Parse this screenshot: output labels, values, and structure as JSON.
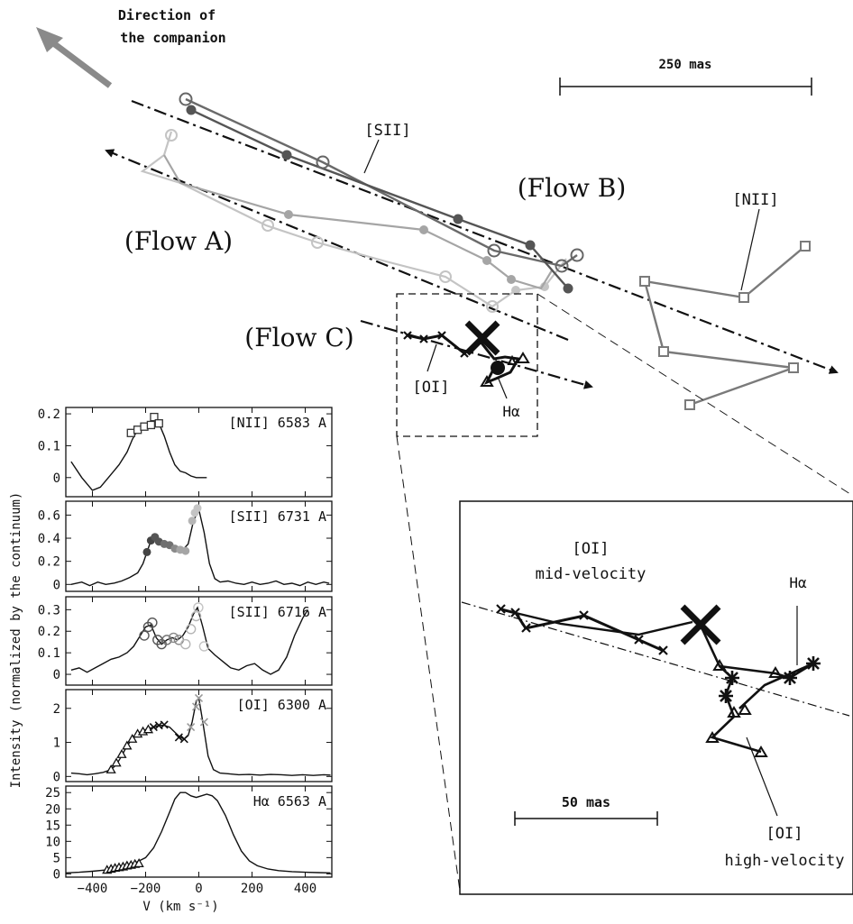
{
  "main_labels": {
    "direction_line1": "Direction of",
    "direction_line2": "the companion",
    "scale_main": "250 mas",
    "flow_a": "(Flow A)",
    "flow_b": "(Flow B)",
    "flow_c": "(Flow C)",
    "sii": "[SII]",
    "nii": "[NII]",
    "oi": "[OI]",
    "halpha": "Hα"
  },
  "inset_labels": {
    "oi_mid_line1": "[OI]",
    "oi_mid_line2": "mid-velocity",
    "halpha": "Hα",
    "scale": "50 mas",
    "oi_high_line1": "[OI]",
    "oi_high_line2": "high-velocity"
  },
  "colors": {
    "nii": "#7a7a7a",
    "sii_dark": "#555555",
    "sii_mid": "#8a8a8a",
    "sii_light": "#c4c4c4",
    "black": "#111111"
  },
  "chart_data": [
    {
      "type": "line",
      "label": "[NII] 6583 A",
      "xlim": [
        -500,
        500
      ],
      "ylim": [
        -0.06,
        0.22
      ],
      "yticks": [
        0,
        0.1,
        0.2
      ],
      "ytick_labels": [
        "0",
        "0.1",
        "0.2"
      ],
      "profile": [
        [
          -480,
          0.05
        ],
        [
          -440,
          0.0
        ],
        [
          -400,
          -0.04
        ],
        [
          -370,
          -0.03
        ],
        [
          -340,
          0.0
        ],
        [
          -300,
          0.04
        ],
        [
          -270,
          0.08
        ],
        [
          -250,
          0.12
        ],
        [
          -230,
          0.15
        ],
        [
          -210,
          0.16
        ],
        [
          -190,
          0.165
        ],
        [
          -170,
          0.19
        ],
        [
          -150,
          0.17
        ],
        [
          -130,
          0.13
        ],
        [
          -110,
          0.08
        ],
        [
          -90,
          0.04
        ],
        [
          -70,
          0.02
        ],
        [
          -50,
          0.015
        ],
        [
          -30,
          0.005
        ],
        [
          -10,
          0.0
        ],
        [
          10,
          0.0
        ],
        [
          30,
          0.0
        ]
      ],
      "markers": {
        "symbol": "square",
        "color": "#333333",
        "points": [
          [
            -255,
            0.14
          ],
          [
            -230,
            0.15
          ],
          [
            -205,
            0.16
          ],
          [
            -180,
            0.165
          ],
          [
            -168,
            0.19
          ],
          [
            -150,
            0.17
          ]
        ]
      }
    },
    {
      "type": "line",
      "label": "[SII] 6731 A",
      "xlim": [
        -500,
        500
      ],
      "ylim": [
        -0.06,
        0.72
      ],
      "yticks": [
        0,
        0.2,
        0.4,
        0.6
      ],
      "ytick_labels": [
        "0",
        "0.2",
        "0.4",
        "0.6"
      ],
      "profile": [
        [
          -480,
          0.0
        ],
        [
          -440,
          0.02
        ],
        [
          -410,
          -0.01
        ],
        [
          -380,
          0.02
        ],
        [
          -350,
          0.0
        ],
        [
          -320,
          0.01
        ],
        [
          -290,
          0.03
        ],
        [
          -260,
          0.06
        ],
        [
          -230,
          0.1
        ],
        [
          -210,
          0.18
        ],
        [
          -195,
          0.28
        ],
        [
          -180,
          0.38
        ],
        [
          -160,
          0.4
        ],
        [
          -140,
          0.36
        ],
        [
          -120,
          0.35
        ],
        [
          -100,
          0.33
        ],
        [
          -80,
          0.31
        ],
        [
          -60,
          0.3
        ],
        [
          -40,
          0.35
        ],
        [
          -20,
          0.55
        ],
        [
          0,
          0.65
        ],
        [
          20,
          0.45
        ],
        [
          40,
          0.18
        ],
        [
          60,
          0.05
        ],
        [
          80,
          0.02
        ],
        [
          110,
          0.03
        ],
        [
          140,
          0.01
        ],
        [
          170,
          0.0
        ],
        [
          200,
          0.02
        ],
        [
          230,
          0.0
        ],
        [
          260,
          0.01
        ],
        [
          290,
          0.03
        ],
        [
          320,
          0.0
        ],
        [
          350,
          0.01
        ],
        [
          380,
          -0.01
        ],
        [
          410,
          0.02
        ],
        [
          440,
          0.0
        ],
        [
          470,
          0.02
        ],
        [
          490,
          0.01
        ]
      ],
      "markers": {
        "symbol": "filled-circle",
        "points": [
          [
            -195,
            0.28,
            "#444444"
          ],
          [
            -180,
            0.38,
            "#444444"
          ],
          [
            -165,
            0.41,
            "#555555"
          ],
          [
            -150,
            0.37,
            "#555555"
          ],
          [
            -130,
            0.35,
            "#707070"
          ],
          [
            -110,
            0.34,
            "#707070"
          ],
          [
            -90,
            0.31,
            "#8a8a8a"
          ],
          [
            -70,
            0.3,
            "#a5a5a5"
          ],
          [
            -50,
            0.29,
            "#a5a5a5"
          ],
          [
            -25,
            0.55,
            "#b5b5b5"
          ],
          [
            -15,
            0.62,
            "#c4c4c4"
          ],
          [
            -5,
            0.66,
            "#c4c4c4"
          ]
        ]
      }
    },
    {
      "type": "line",
      "label": "[SII] 6716 A",
      "xlim": [
        -500,
        500
      ],
      "ylim": [
        -0.05,
        0.36
      ],
      "yticks": [
        0,
        0.1,
        0.2,
        0.3
      ],
      "ytick_labels": [
        "0",
        "0.1",
        "0.2",
        "0.3"
      ],
      "profile": [
        [
          -480,
          0.02
        ],
        [
          -450,
          0.03
        ],
        [
          -420,
          0.01
        ],
        [
          -390,
          0.03
        ],
        [
          -360,
          0.05
        ],
        [
          -330,
          0.07
        ],
        [
          -300,
          0.08
        ],
        [
          -270,
          0.1
        ],
        [
          -245,
          0.13
        ],
        [
          -220,
          0.18
        ],
        [
          -200,
          0.22
        ],
        [
          -180,
          0.23
        ],
        [
          -160,
          0.17
        ],
        [
          -140,
          0.14
        ],
        [
          -120,
          0.16
        ],
        [
          -100,
          0.17
        ],
        [
          -80,
          0.16
        ],
        [
          -60,
          0.18
        ],
        [
          -40,
          0.22
        ],
        [
          -20,
          0.28
        ],
        [
          -5,
          0.31
        ],
        [
          15,
          0.22
        ],
        [
          35,
          0.12
        ],
        [
          60,
          0.09
        ],
        [
          90,
          0.06
        ],
        [
          120,
          0.03
        ],
        [
          150,
          0.02
        ],
        [
          180,
          0.04
        ],
        [
          210,
          0.05
        ],
        [
          240,
          0.02
        ],
        [
          270,
          0.0
        ],
        [
          300,
          0.02
        ],
        [
          330,
          0.08
        ],
        [
          360,
          0.18
        ],
        [
          390,
          0.26
        ],
        [
          410,
          0.3
        ]
      ],
      "markers": {
        "symbol": "open-circle",
        "points": [
          [
            -205,
            0.18,
            "#555555"
          ],
          [
            -190,
            0.22,
            "#555555"
          ],
          [
            -175,
            0.24,
            "#555555"
          ],
          [
            -155,
            0.16,
            "#555555"
          ],
          [
            -140,
            0.14,
            "#555555"
          ],
          [
            -120,
            0.16,
            "#707070"
          ],
          [
            -95,
            0.17,
            "#8a8a8a"
          ],
          [
            -75,
            0.16,
            "#8a8a8a"
          ],
          [
            -50,
            0.14,
            "#b5b5b5"
          ],
          [
            -30,
            0.21,
            "#b5b5b5"
          ],
          [
            -10,
            0.27,
            "#b5b5b5"
          ],
          [
            -2,
            0.31,
            "#c4c4c4"
          ],
          [
            20,
            0.13,
            "#c4c4c4"
          ]
        ]
      }
    },
    {
      "type": "line",
      "label": "[OI] 6300 A",
      "xlim": [
        -500,
        500
      ],
      "ylim": [
        -0.15,
        2.55
      ],
      "yticks": [
        0,
        1,
        2
      ],
      "ytick_labels": [
        "0",
        "1",
        "2"
      ],
      "profile": [
        [
          -480,
          0.1
        ],
        [
          -450,
          0.08
        ],
        [
          -420,
          0.05
        ],
        [
          -390,
          0.08
        ],
        [
          -360,
          0.12
        ],
        [
          -330,
          0.2
        ],
        [
          -310,
          0.35
        ],
        [
          -290,
          0.6
        ],
        [
          -270,
          0.9
        ],
        [
          -250,
          1.1
        ],
        [
          -230,
          1.25
        ],
        [
          -210,
          1.35
        ],
        [
          -190,
          1.4
        ],
        [
          -170,
          1.45
        ],
        [
          -150,
          1.5
        ],
        [
          -130,
          1.5
        ],
        [
          -110,
          1.45
        ],
        [
          -90,
          1.3
        ],
        [
          -70,
          1.15
        ],
        [
          -55,
          1.1
        ],
        [
          -40,
          1.2
        ],
        [
          -25,
          1.6
        ],
        [
          -10,
          2.2
        ],
        [
          0,
          2.3
        ],
        [
          15,
          1.6
        ],
        [
          35,
          0.6
        ],
        [
          55,
          0.2
        ],
        [
          80,
          0.1
        ],
        [
          110,
          0.08
        ],
        [
          150,
          0.05
        ],
        [
          190,
          0.06
        ],
        [
          230,
          0.04
        ],
        [
          270,
          0.06
        ],
        [
          310,
          0.05
        ],
        [
          350,
          0.03
        ],
        [
          390,
          0.05
        ],
        [
          430,
          0.03
        ],
        [
          470,
          0.05
        ],
        [
          495,
          0.04
        ]
      ],
      "markers_triangle": {
        "symbol": "triangle",
        "color": "#111111",
        "points": [
          [
            -330,
            0.2
          ],
          [
            -310,
            0.4
          ],
          [
            -290,
            0.65
          ],
          [
            -270,
            0.9
          ],
          [
            -250,
            1.1
          ],
          [
            -230,
            1.25
          ],
          [
            -210,
            1.32
          ],
          [
            -190,
            1.38
          ]
        ]
      },
      "markers_cross": {
        "symbol": "cross",
        "points": [
          [
            -170,
            1.45,
            "#111111"
          ],
          [
            -150,
            1.5,
            "#111111"
          ],
          [
            -130,
            1.52,
            "#111111"
          ],
          [
            -75,
            1.15,
            "#111111"
          ],
          [
            -55,
            1.1,
            "#111111"
          ],
          [
            -30,
            1.45,
            "#9a9a9a"
          ],
          [
            -10,
            2.05,
            "#9a9a9a"
          ],
          [
            0,
            2.3,
            "#9a9a9a"
          ],
          [
            20,
            1.6,
            "#9a9a9a"
          ]
        ]
      }
    },
    {
      "type": "line",
      "label": "Hα 6563 A",
      "xlim": [
        -500,
        500
      ],
      "ylim": [
        -1,
        27
      ],
      "yticks": [
        0,
        5,
        10,
        15,
        20,
        25
      ],
      "ytick_labels": [
        "0",
        "5",
        "10",
        "15",
        "20",
        "25"
      ],
      "xticks": [
        -400,
        -200,
        0,
        200,
        400
      ],
      "xtick_labels": [
        "−400",
        "−200",
        "0",
        "200",
        "400"
      ],
      "xlabel": "V (km s⁻¹)",
      "profile": [
        [
          -500,
          0.3
        ],
        [
          -450,
          0.5
        ],
        [
          -400,
          0.8
        ],
        [
          -350,
          1.2
        ],
        [
          -300,
          2.0
        ],
        [
          -250,
          3.0
        ],
        [
          -200,
          5.0
        ],
        [
          -170,
          8.0
        ],
        [
          -140,
          13.0
        ],
        [
          -110,
          19.0
        ],
        [
          -90,
          23.0
        ],
        [
          -70,
          25.0
        ],
        [
          -50,
          25.0
        ],
        [
          -30,
          24.0
        ],
        [
          -10,
          23.5
        ],
        [
          10,
          24.0
        ],
        [
          30,
          24.5
        ],
        [
          50,
          24.0
        ],
        [
          70,
          22.5
        ],
        [
          100,
          18.0
        ],
        [
          130,
          12.0
        ],
        [
          160,
          7.0
        ],
        [
          190,
          4.0
        ],
        [
          220,
          2.5
        ],
        [
          260,
          1.5
        ],
        [
          300,
          1.0
        ],
        [
          350,
          0.7
        ],
        [
          400,
          0.5
        ],
        [
          450,
          0.4
        ],
        [
          495,
          0.3
        ]
      ],
      "markers": {
        "symbol": "triangle",
        "color": "#111111",
        "points": [
          [
            -345,
            1.2
          ],
          [
            -330,
            1.5
          ],
          [
            -315,
            1.8
          ],
          [
            -300,
            2.0
          ],
          [
            -285,
            2.2
          ],
          [
            -270,
            2.5
          ],
          [
            -255,
            2.7
          ],
          [
            -240,
            3.0
          ],
          [
            -225,
            3.2
          ]
        ]
      }
    }
  ],
  "shared_ylabel": "Intensity (normalized by the continuum)"
}
